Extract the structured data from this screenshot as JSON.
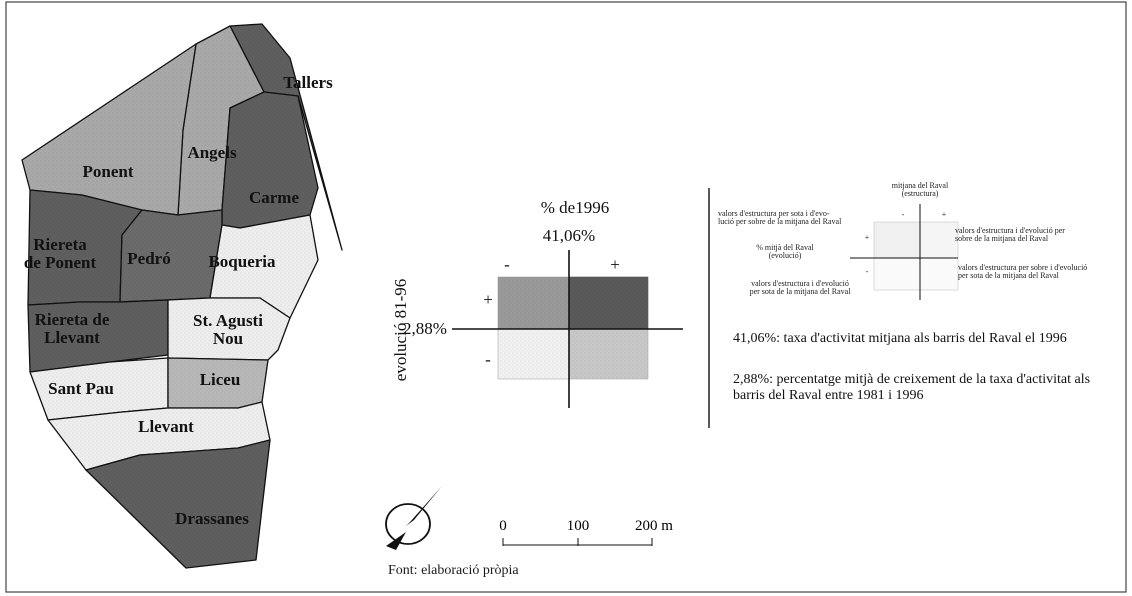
{
  "neighbourhoods": [
    {
      "name": "Tallers",
      "lines": [
        "Tallers"
      ],
      "class": "below-above",
      "fill": "#5f5f5f"
    },
    {
      "name": "Angels",
      "lines": [
        "Angels"
      ],
      "class": "mid",
      "fill": "#a9a9a9"
    },
    {
      "name": "Ponent",
      "lines": [
        "Ponent"
      ],
      "class": "mid",
      "fill": "#a9a9a9"
    },
    {
      "name": "Carme",
      "lines": [
        "Carme"
      ],
      "class": "above-above",
      "fill": "#5f5f5f"
    },
    {
      "name": "Riereta de Ponent",
      "lines": [
        "Riereta",
        "de Ponent"
      ],
      "class": "above-above",
      "fill": "#5f5f5f"
    },
    {
      "name": "Pedró",
      "lines": [
        "Pedró"
      ],
      "class": "above-above",
      "fill": "#6b6b6b"
    },
    {
      "name": "Boqueria",
      "lines": [
        "Boqueria"
      ],
      "class": "below",
      "fill": "#eeeeee"
    },
    {
      "name": "Riereta de Llevant",
      "lines": [
        "Riereta de",
        "Llevant"
      ],
      "class": "above-above",
      "fill": "#5f5f5f"
    },
    {
      "name": "St. Agustí Nou",
      "lines": [
        "St. Agusti",
        "Nou"
      ],
      "class": "below",
      "fill": "#eeeeee"
    },
    {
      "name": "Sant Pau",
      "lines": [
        "Sant Pau"
      ],
      "class": "below",
      "fill": "#eeeeee"
    },
    {
      "name": "Liceu",
      "lines": [
        "Liceu"
      ],
      "class": "mid",
      "fill": "#b8b8b8"
    },
    {
      "name": "Llevant",
      "lines": [
        "Llevant"
      ],
      "class": "below",
      "fill": "#eeeeee"
    },
    {
      "name": "Drassanes",
      "lines": [
        "Drassanes"
      ],
      "class": "above-above",
      "fill": "#5f5f5f"
    }
  ],
  "legend": {
    "title": "% de1996",
    "x_value": "41,06%",
    "minus": "-",
    "plus": "+",
    "y_axis_label": "evolució 81-96",
    "y_value": "2,88%",
    "quadrant_fills": {
      "top_left": "#9a9a9a",
      "top_right": "#5a5a5a",
      "bottom_left": "#f2f2f2",
      "bottom_right": "#c8c8c8"
    }
  },
  "key": {
    "top_label_1": "mitjana del Raval",
    "top_label_2": "(estructura)",
    "upper_left_1": "valors d'estructura per sota i d'evo-",
    "upper_left_2": "lució per sobre de la mitjana del Raval",
    "upper_right_1": "valors d'estructura i d'evolució per",
    "upper_right_2": "sobre de la mitjana del Raval",
    "mid_left_1": "% mitjà del Raval",
    "mid_left_2": "(evolució)",
    "lower_right_1": "valors d'estructura per sobre i d'evolució",
    "lower_right_2": "per sota de la mitjana del Raval",
    "lower_left_1": "valors d'estructura i d'evolució",
    "lower_left_2": "per sota de la mitjana del Raval",
    "minus": "-",
    "plus": "+"
  },
  "notes": {
    "note1": "41,06%: taxa d'activitat mitjana als barris del Raval el 1996",
    "note2": "2,88%: percentatge mitjà de creixement de la taxa d'activitat als barris del Raval entre 1981 i 1996"
  },
  "scale": {
    "t0": "0",
    "t1": "100",
    "t2": "200 m"
  },
  "credit": "Font: elaboració pròpia",
  "compass": "north-arrow-icon"
}
